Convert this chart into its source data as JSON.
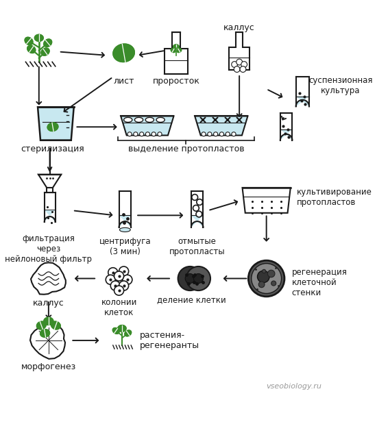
{
  "bg_color": "#ffffff",
  "line_color": "#1a1a1a",
  "green_color": "#3a8c2a",
  "light_blue": "#c8e8f0",
  "watermark": "vseobiology.ru",
  "labels": {
    "kallus_top": "каллус",
    "list": "лист",
    "prorostok": "проросток",
    "suspenziya": "суспензионная\nкультура",
    "sterilizaciya": "стерилизация",
    "vydelenie": "выделение протопластов",
    "filtracia": "фильтрация\nчерез\nнейлоновый фильтр",
    "centrifuga": "центрифуга\n(3 мин)",
    "otmytye": "отмытые\nпротопласты",
    "kultivirovanie": "культивирование\nпротопластов",
    "regeneraciya": "регенерация\nклеточной\nстенки",
    "delenie": "деление клетки",
    "kolonii": "колонии\nклеток",
    "kallus_bot": "каллус",
    "morfogenez": "морфогенез",
    "regeneranty": "растения-\nрегенеранты"
  }
}
